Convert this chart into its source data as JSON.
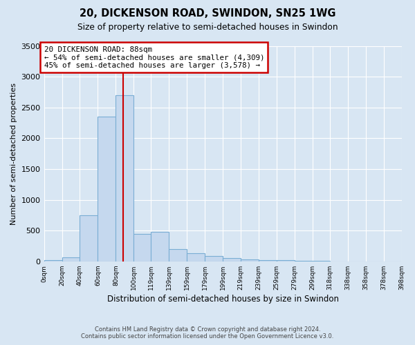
{
  "title1": "20, DICKENSON ROAD, SWINDON, SN25 1WG",
  "title2": "Size of property relative to semi-detached houses in Swindon",
  "xlabel": "Distribution of semi-detached houses by size in Swindon",
  "ylabel": "Number of semi-detached properties",
  "annotation_title": "20 DICKENSON ROAD: 88sqm",
  "annotation_line1": "← 54% of semi-detached houses are smaller (4,309)",
  "annotation_line2": "45% of semi-detached houses are larger (3,578) →",
  "footer1": "Contains HM Land Registry data © Crown copyright and database right 2024.",
  "footer2": "Contains public sector information licensed under the Open Government Licence v3.0.",
  "property_size": 88,
  "bins": [
    0,
    20,
    40,
    60,
    80,
    100,
    119,
    139,
    159,
    179,
    199,
    219,
    239,
    259,
    279,
    299,
    318,
    338,
    358,
    378,
    398
  ],
  "counts": [
    15,
    60,
    750,
    2350,
    2700,
    450,
    480,
    200,
    130,
    85,
    50,
    30,
    20,
    15,
    8,
    5,
    3,
    2,
    1,
    0
  ],
  "bar_color": "#c5d8ee",
  "bar_edge_color": "#7aaed4",
  "vline_color": "#cc0000",
  "annotation_box_color": "#ffffff",
  "annotation_box_edge": "#cc0000",
  "background_color": "#d8e6f3",
  "plot_bg_color": "#d8e6f3",
  "grid_color": "#ffffff",
  "ylim_max": 3500,
  "yticks": [
    0,
    500,
    1000,
    1500,
    2000,
    2500,
    3000,
    3500
  ],
  "tick_labels": [
    "0sqm",
    "20sqm",
    "40sqm",
    "60sqm",
    "80sqm",
    "100sqm",
    "119sqm",
    "139sqm",
    "159sqm",
    "179sqm",
    "199sqm",
    "219sqm",
    "239sqm",
    "259sqm",
    "279sqm",
    "299sqm",
    "318sqm",
    "338sqm",
    "358sqm",
    "378sqm",
    "398sqm"
  ]
}
